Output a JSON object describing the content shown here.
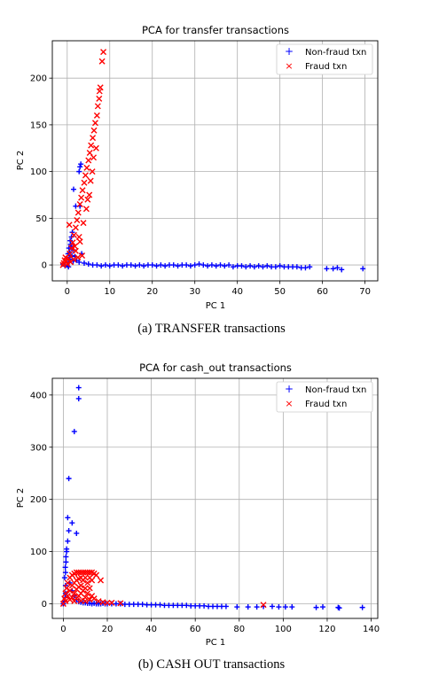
{
  "figure": {
    "caption_a": "(a) TRANSFER transactions",
    "caption_b": "(b) CASH OUT transactions"
  },
  "colors": {
    "non_fraud": "#0000ff",
    "fraud": "#ff0000",
    "grid": "#b0b0b0",
    "axis": "#000000"
  },
  "chart_data": [
    {
      "type": "scatter",
      "title": "PCA for transfer transactions",
      "xlabel": "PC 1",
      "ylabel": "PC 2",
      "xlim": [
        -3.5,
        73
      ],
      "ylim": [
        -17,
        240
      ],
      "xticks": [
        0,
        10,
        20,
        30,
        40,
        50,
        60,
        70
      ],
      "yticks": [
        0,
        50,
        100,
        150,
        200
      ],
      "grid": true,
      "legend_position": "top-right",
      "series": [
        {
          "name": "Non-fraud txn",
          "marker": "+",
          "color": "#0000ff",
          "points": [
            [
              -1,
              1
            ],
            [
              -0.5,
              -1
            ],
            [
              0,
              0
            ],
            [
              0.3,
              3
            ],
            [
              0.5,
              8
            ],
            [
              0.6,
              14
            ],
            [
              0.8,
              22
            ],
            [
              1,
              30
            ],
            [
              0.4,
              18
            ],
            [
              0.2,
              12
            ],
            [
              0.7,
              26
            ],
            [
              1.2,
              35
            ],
            [
              0.9,
              20
            ],
            [
              1.1,
              10
            ],
            [
              0.6,
              6
            ],
            [
              1.4,
              4
            ],
            [
              0.3,
              -2
            ],
            [
              1.5,
              16
            ],
            [
              1.8,
              9
            ],
            [
              2.2,
              5
            ],
            [
              2.8,
              3
            ],
            [
              2,
              63
            ],
            [
              3,
              63
            ],
            [
              1.5,
              81
            ],
            [
              3,
              105
            ],
            [
              3.2,
              108
            ],
            [
              2.8,
              100
            ],
            [
              3.4,
              12
            ],
            [
              4,
              2
            ],
            [
              5,
              1
            ],
            [
              6,
              0
            ],
            [
              7,
              0
            ],
            [
              8,
              -1
            ],
            [
              9,
              0
            ],
            [
              10,
              -1
            ],
            [
              11,
              0
            ],
            [
              12,
              0
            ],
            [
              13,
              -1
            ],
            [
              14,
              0
            ],
            [
              15,
              0
            ],
            [
              16,
              -1
            ],
            [
              17,
              0
            ],
            [
              18,
              -1
            ],
            [
              19,
              0
            ],
            [
              20,
              0
            ],
            [
              21,
              -1
            ],
            [
              22,
              0
            ],
            [
              23,
              -1
            ],
            [
              24,
              0
            ],
            [
              25,
              0
            ],
            [
              26,
              -1
            ],
            [
              27,
              0
            ],
            [
              28,
              0
            ],
            [
              29,
              -1
            ],
            [
              30,
              0
            ],
            [
              31,
              1
            ],
            [
              32,
              0
            ],
            [
              33,
              -1
            ],
            [
              34,
              0
            ],
            [
              35,
              -1
            ],
            [
              36,
              0
            ],
            [
              37,
              -1
            ],
            [
              38,
              0
            ],
            [
              39,
              -2
            ],
            [
              40,
              -1
            ],
            [
              41,
              -1
            ],
            [
              42,
              -2
            ],
            [
              43,
              -1
            ],
            [
              44,
              -2
            ],
            [
              45,
              -1
            ],
            [
              46,
              -2
            ],
            [
              47,
              -1
            ],
            [
              48,
              -2
            ],
            [
              49,
              -2
            ],
            [
              50,
              -1
            ],
            [
              51,
              -2
            ],
            [
              52,
              -2
            ],
            [
              53,
              -2
            ],
            [
              54,
              -2
            ],
            [
              55,
              -3
            ],
            [
              56,
              -3
            ],
            [
              57,
              -2
            ],
            [
              61,
              -4
            ],
            [
              62.5,
              -4
            ],
            [
              63.5,
              -3
            ],
            [
              64.5,
              -5
            ],
            [
              69.5,
              -4
            ]
          ]
        },
        {
          "name": "Fraud txn",
          "marker": "x",
          "color": "#ff0000",
          "points": [
            [
              -1,
              0
            ],
            [
              -0.8,
              2
            ],
            [
              -0.6,
              5
            ],
            [
              -0.4,
              8
            ],
            [
              -0.2,
              4
            ],
            [
              0,
              1
            ],
            [
              0.3,
              7
            ],
            [
              0.6,
              12
            ],
            [
              1,
              18
            ],
            [
              1.3,
              24
            ],
            [
              1.6,
              32
            ],
            [
              2,
              40
            ],
            [
              2.3,
              48
            ],
            [
              2.6,
              56
            ],
            [
              3,
              65
            ],
            [
              3.3,
              72
            ],
            [
              3.6,
              80
            ],
            [
              4,
              88
            ],
            [
              4.3,
              96
            ],
            [
              4.6,
              104
            ],
            [
              5,
              112
            ],
            [
              5.3,
              120
            ],
            [
              5.6,
              128
            ],
            [
              6,
              136
            ],
            [
              6.3,
              144
            ],
            [
              6.6,
              152
            ],
            [
              7,
              160
            ],
            [
              7.2,
              170
            ],
            [
              7.5,
              178
            ],
            [
              7.6,
              186
            ],
            [
              7.8,
              190
            ],
            [
              8.2,
              218
            ],
            [
              8.5,
              228
            ],
            [
              0.5,
              43
            ],
            [
              1.5,
              6
            ],
            [
              2.5,
              8
            ],
            [
              3.5,
              10
            ],
            [
              1.8,
              20
            ],
            [
              2.8,
              30
            ],
            [
              3.8,
              45
            ],
            [
              4.5,
              60
            ],
            [
              5.2,
              75
            ],
            [
              5.9,
              100
            ],
            [
              6.8,
              125
            ],
            [
              0.8,
              3
            ],
            [
              2,
              15
            ],
            [
              3,
              25
            ],
            [
              4.8,
              70
            ],
            [
              5.5,
              90
            ],
            [
              6.2,
              115
            ]
          ]
        }
      ]
    },
    {
      "type": "scatter",
      "title": "PCA for cash_out transactions",
      "xlabel": "PC 1",
      "ylabel": "PC 2",
      "xlim": [
        -5,
        143
      ],
      "ylim": [
        -28,
        432
      ],
      "xticks": [
        0,
        20,
        40,
        60,
        80,
        100,
        120,
        140
      ],
      "yticks": [
        0,
        100,
        200,
        300,
        400
      ],
      "grid": true,
      "legend_position": "top-right",
      "series": [
        {
          "name": "Non-fraud txn",
          "marker": "+",
          "color": "#0000ff",
          "points": [
            [
              0,
              0
            ],
            [
              0.5,
              5
            ],
            [
              0.8,
              12
            ],
            [
              1,
              20
            ],
            [
              1,
              35
            ],
            [
              1,
              60
            ],
            [
              1.2,
              80
            ],
            [
              1.5,
              100
            ],
            [
              1.2,
              90
            ],
            [
              0.6,
              50
            ],
            [
              0.9,
              70
            ],
            [
              1.5,
              105
            ],
            [
              2,
              120
            ],
            [
              2.5,
              140
            ],
            [
              2,
              165
            ],
            [
              2.5,
              240
            ],
            [
              4,
              155
            ],
            [
              6,
              135
            ],
            [
              5,
              330
            ],
            [
              7,
              393
            ],
            [
              7,
              414
            ],
            [
              3,
              40
            ],
            [
              4,
              25
            ],
            [
              5,
              15
            ],
            [
              6,
              8
            ],
            [
              7,
              4
            ],
            [
              8,
              3
            ],
            [
              9,
              2
            ],
            [
              10,
              2
            ],
            [
              11,
              1
            ],
            [
              12,
              1
            ],
            [
              13,
              0
            ],
            [
              14,
              1
            ],
            [
              15,
              0
            ],
            [
              16,
              0
            ],
            [
              17,
              0
            ],
            [
              18,
              1
            ],
            [
              19,
              0
            ],
            [
              20,
              0
            ],
            [
              22,
              0
            ],
            [
              24,
              0
            ],
            [
              26,
              0
            ],
            [
              28,
              -1
            ],
            [
              30,
              -1
            ],
            [
              32,
              -1
            ],
            [
              34,
              -1
            ],
            [
              36,
              -1
            ],
            [
              38,
              -2
            ],
            [
              40,
              -2
            ],
            [
              42,
              -2
            ],
            [
              44,
              -2
            ],
            [
              46,
              -3
            ],
            [
              48,
              -3
            ],
            [
              50,
              -3
            ],
            [
              52,
              -3
            ],
            [
              54,
              -3
            ],
            [
              56,
              -3
            ],
            [
              58,
              -4
            ],
            [
              60,
              -4
            ],
            [
              62,
              -4
            ],
            [
              64,
              -4
            ],
            [
              66,
              -5
            ],
            [
              68,
              -5
            ],
            [
              70,
              -5
            ],
            [
              72,
              -5
            ],
            [
              74,
              -5
            ],
            [
              79,
              -6
            ],
            [
              84,
              -6
            ],
            [
              88,
              -6
            ],
            [
              91,
              -5
            ],
            [
              95,
              -5
            ],
            [
              98,
              -6
            ],
            [
              101,
              -6
            ],
            [
              104,
              -6
            ],
            [
              115,
              -7
            ],
            [
              118,
              -6
            ],
            [
              125,
              -7
            ],
            [
              125.5,
              -8
            ],
            [
              136,
              -7
            ]
          ]
        },
        {
          "name": "Fraud txn",
          "marker": "x",
          "color": "#ff0000",
          "points": [
            [
              0,
              0
            ],
            [
              0.5,
              10
            ],
            [
              1,
              5
            ],
            [
              1,
              20
            ],
            [
              1.5,
              30
            ],
            [
              2,
              40
            ],
            [
              2,
              15
            ],
            [
              3,
              50
            ],
            [
              3,
              25
            ],
            [
              3,
              8
            ],
            [
              4,
              55
            ],
            [
              4,
              35
            ],
            [
              4,
              12
            ],
            [
              5,
              58
            ],
            [
              5,
              40
            ],
            [
              5,
              20
            ],
            [
              5,
              5
            ],
            [
              6,
              60
            ],
            [
              6,
              45
            ],
            [
              6,
              28
            ],
            [
              6,
              10
            ],
            [
              7,
              60
            ],
            [
              7,
              48
            ],
            [
              7,
              32
            ],
            [
              7,
              15
            ],
            [
              8,
              60
            ],
            [
              8,
              50
            ],
            [
              8,
              35
            ],
            [
              8,
              20
            ],
            [
              8,
              6
            ],
            [
              9,
              60
            ],
            [
              9,
              45
            ],
            [
              9,
              25
            ],
            [
              10,
              60
            ],
            [
              10,
              50
            ],
            [
              10,
              30
            ],
            [
              10,
              12
            ],
            [
              11,
              60
            ],
            [
              11,
              40
            ],
            [
              11,
              20
            ],
            [
              12,
              60
            ],
            [
              12,
              50
            ],
            [
              12,
              30
            ],
            [
              13,
              60
            ],
            [
              13,
              45
            ],
            [
              13,
              15
            ],
            [
              14,
              58
            ],
            [
              15,
              55
            ],
            [
              17,
              45
            ],
            [
              10,
              5
            ],
            [
              12,
              8
            ],
            [
              14,
              10
            ],
            [
              16,
              5
            ],
            [
              18,
              3
            ],
            [
              20,
              2
            ],
            [
              22,
              2
            ],
            [
              26,
              1
            ],
            [
              91,
              -2
            ]
          ]
        }
      ]
    }
  ]
}
